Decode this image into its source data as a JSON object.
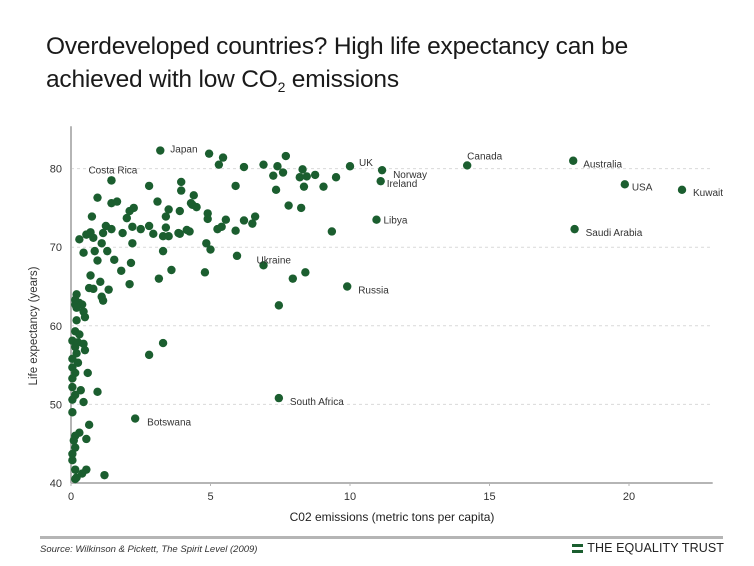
{
  "title": {
    "line1": "Overdeveloped countries? High life expectancy can be",
    "line2_prefix": "achieved with low CO",
    "line2_sub": "2",
    "line2_suffix": " emissions"
  },
  "footer": {
    "source": "Source: Wilkinson & Pickett, The Spirit Level (2009)",
    "brand": "THE EQUALITY TRUST",
    "brand_icon": "equals-bars-icon"
  },
  "colors": {
    "dot": "#1b5e2f",
    "axis": "#b5b5b5",
    "grid": "#d9d9d9",
    "label": "#333333"
  },
  "chart_data": {
    "type": "scatter",
    "title": "Overdeveloped countries? High life expectancy can be achieved with low CO2 emissions",
    "xlabel": "C02 emissions (metric tons per capita)",
    "ylabel": "Life expectancy (years)",
    "xlim": [
      0,
      23
    ],
    "ylim": [
      40,
      85
    ],
    "xticks": [
      0,
      5,
      10,
      15,
      20
    ],
    "yticks": [
      40,
      50,
      60,
      70,
      80
    ],
    "grid": "horizontal dashed",
    "labeled_points": [
      {
        "label": "Japan",
        "x": 3.2,
        "y": 82.3
      },
      {
        "label": "Costa Rica",
        "x": 1.45,
        "y": 78.5
      },
      {
        "label": "UK",
        "x": 10.0,
        "y": 80.3
      },
      {
        "label": "Norway",
        "x": 11.15,
        "y": 79.8
      },
      {
        "label": "Ireland",
        "x": 11.1,
        "y": 78.4
      },
      {
        "label": "Canada",
        "x": 14.2,
        "y": 80.4
      },
      {
        "label": "Australia",
        "x": 18.0,
        "y": 81.0
      },
      {
        "label": "USA",
        "x": 19.85,
        "y": 78.0
      },
      {
        "label": "Kuwait",
        "x": 21.9,
        "y": 77.3
      },
      {
        "label": "Libya",
        "x": 10.95,
        "y": 73.5
      },
      {
        "label": "Saudi Arabia",
        "x": 18.05,
        "y": 72.3
      },
      {
        "label": "Ukraine",
        "x": 6.9,
        "y": 67.7
      },
      {
        "label": "Russia",
        "x": 9.9,
        "y": 65.0
      },
      {
        "label": "South Africa",
        "x": 7.45,
        "y": 50.8
      },
      {
        "label": "Botswana",
        "x": 2.3,
        "y": 48.2
      }
    ],
    "points": [
      [
        4.95,
        81.9
      ],
      [
        5.45,
        81.4
      ],
      [
        5.3,
        80.5
      ],
      [
        6.2,
        80.2
      ],
      [
        6.9,
        80.5
      ],
      [
        7.4,
        80.3
      ],
      [
        7.7,
        81.6
      ],
      [
        7.25,
        79.1
      ],
      [
        7.6,
        79.5
      ],
      [
        8.3,
        79.9
      ],
      [
        8.2,
        78.9
      ],
      [
        8.45,
        79.0
      ],
      [
        8.75,
        79.2
      ],
      [
        8.35,
        77.7
      ],
      [
        9.05,
        77.7
      ],
      [
        9.5,
        78.9
      ],
      [
        5.9,
        77.8
      ],
      [
        7.35,
        77.3
      ],
      [
        4.4,
        76.6
      ],
      [
        4.35,
        75.4
      ],
      [
        4.5,
        75.1
      ],
      [
        3.95,
        77.2
      ],
      [
        4.9,
        74.3
      ],
      [
        4.9,
        73.6
      ],
      [
        5.55,
        73.5
      ],
      [
        6.2,
        73.4
      ],
      [
        6.6,
        73.9
      ],
      [
        6.5,
        73.0
      ],
      [
        5.25,
        72.3
      ],
      [
        5.4,
        72.6
      ],
      [
        5.9,
        72.1
      ],
      [
        4.25,
        72.0
      ],
      [
        3.9,
        74.6
      ],
      [
        3.9,
        71.7
      ],
      [
        7.8,
        75.3
      ],
      [
        8.25,
        75.0
      ],
      [
        9.35,
        72.0
      ],
      [
        4.85,
        70.5
      ],
      [
        5.0,
        69.7
      ],
      [
        5.95,
        68.9
      ],
      [
        4.8,
        66.8
      ],
      [
        7.95,
        66.0
      ],
      [
        8.4,
        66.8
      ],
      [
        7.45,
        62.6
      ],
      [
        1.45,
        78.5
      ],
      [
        2.8,
        77.8
      ],
      [
        3.95,
        78.3
      ],
      [
        0.95,
        76.3
      ],
      [
        1.45,
        75.6
      ],
      [
        1.65,
        75.8
      ],
      [
        3.1,
        75.8
      ],
      [
        2.1,
        74.6
      ],
      [
        2.25,
        75.0
      ],
      [
        3.5,
        74.8
      ],
      [
        4.3,
        75.6
      ],
      [
        0.75,
        73.9
      ],
      [
        2.0,
        73.7
      ],
      [
        3.4,
        73.9
      ],
      [
        0.3,
        71.0
      ],
      [
        0.55,
        71.6
      ],
      [
        0.7,
        71.9
      ],
      [
        0.8,
        71.2
      ],
      [
        1.15,
        71.8
      ],
      [
        1.25,
        72.7
      ],
      [
        1.45,
        72.3
      ],
      [
        1.85,
        71.8
      ],
      [
        2.2,
        72.6
      ],
      [
        2.5,
        72.3
      ],
      [
        2.8,
        72.7
      ],
      [
        2.95,
        71.7
      ],
      [
        3.3,
        71.4
      ],
      [
        3.5,
        71.4
      ],
      [
        3.4,
        72.5
      ],
      [
        3.85,
        71.8
      ],
      [
        4.15,
        72.2
      ],
      [
        2.2,
        70.5
      ],
      [
        1.1,
        70.5
      ],
      [
        1.3,
        69.5
      ],
      [
        0.45,
        69.3
      ],
      [
        0.85,
        69.5
      ],
      [
        0.95,
        68.3
      ],
      [
        1.55,
        68.4
      ],
      [
        2.15,
        68.0
      ],
      [
        3.3,
        69.5
      ],
      [
        1.8,
        67.0
      ],
      [
        3.6,
        67.1
      ],
      [
        0.7,
        66.4
      ],
      [
        1.05,
        65.6
      ],
      [
        2.1,
        65.3
      ],
      [
        3.15,
        66.0
      ],
      [
        0.65,
        64.8
      ],
      [
        0.8,
        64.7
      ],
      [
        1.35,
        64.6
      ],
      [
        0.2,
        64.0
      ],
      [
        0.15,
        63.3
      ],
      [
        0.3,
        62.9
      ],
      [
        0.4,
        62.7
      ],
      [
        0.15,
        62.7
      ],
      [
        0.2,
        62.3
      ],
      [
        1.1,
        63.7
      ],
      [
        1.15,
        63.2
      ],
      [
        0.45,
        61.8
      ],
      [
        0.5,
        61.1
      ],
      [
        0.2,
        60.7
      ],
      [
        0.15,
        59.3
      ],
      [
        0.3,
        58.9
      ],
      [
        0.05,
        58.1
      ],
      [
        0.25,
        57.9
      ],
      [
        0.45,
        57.7
      ],
      [
        0.15,
        57.3
      ],
      [
        0.5,
        56.9
      ],
      [
        0.2,
        56.5
      ],
      [
        0.05,
        55.8
      ],
      [
        0.25,
        55.3
      ],
      [
        0.05,
        54.7
      ],
      [
        0.6,
        54.0
      ],
      [
        0.15,
        54.0
      ],
      [
        0.05,
        53.3
      ],
      [
        2.8,
        56.3
      ],
      [
        3.3,
        57.8
      ],
      [
        0.05,
        52.2
      ],
      [
        0.35,
        51.8
      ],
      [
        0.15,
        51.2
      ],
      [
        0.95,
        51.6
      ],
      [
        0.45,
        50.3
      ],
      [
        0.05,
        50.6
      ],
      [
        0.05,
        49.0
      ],
      [
        0.65,
        47.4
      ],
      [
        0.3,
        46.4
      ],
      [
        0.15,
        46.0
      ],
      [
        0.55,
        45.6
      ],
      [
        0.1,
        45.4
      ],
      [
        0.15,
        44.5
      ],
      [
        0.05,
        43.7
      ],
      [
        0.05,
        42.9
      ],
      [
        0.15,
        41.7
      ],
      [
        0.55,
        41.7
      ],
      [
        0.4,
        41.2
      ],
      [
        0.2,
        40.7
      ],
      [
        0.15,
        40.5
      ],
      [
        1.2,
        41.0
      ]
    ]
  }
}
